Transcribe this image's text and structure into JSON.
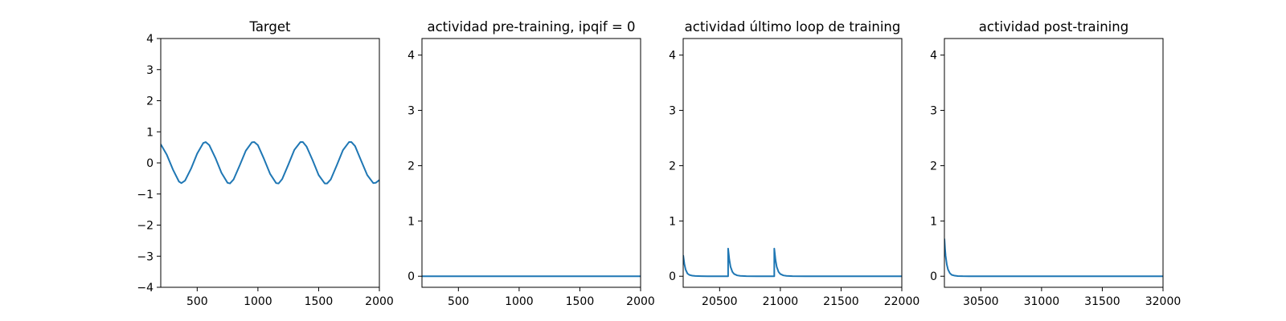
{
  "colors": {
    "series": "#1f77b4",
    "axes": "#000000",
    "background": "#ffffff"
  },
  "chart_data": [
    {
      "type": "line",
      "title": "Target",
      "xlim": [
        200,
        2000
      ],
      "ylim": [
        -4,
        4
      ],
      "xticks": [
        500,
        1000,
        1500,
        2000
      ],
      "yticks": [
        -4,
        -3,
        -2,
        -1,
        0,
        1,
        2,
        3,
        4
      ],
      "grid": false,
      "series": [
        {
          "x": [
            200,
            250,
            300,
            350,
            370,
            400,
            450,
            500,
            550,
            570,
            600,
            650,
            700,
            750,
            770,
            800,
            850,
            900,
            950,
            970,
            1000,
            1050,
            1100,
            1150,
            1170,
            1200,
            1250,
            1300,
            1350,
            1370,
            1400,
            1450,
            1500,
            1550,
            1570,
            1600,
            1650,
            1700,
            1750,
            1770,
            1800,
            1850,
            1900,
            1950,
            1970,
            2000
          ],
          "y": [
            0.6,
            0.26,
            -0.21,
            -0.6,
            -0.65,
            -0.57,
            -0.18,
            0.3,
            0.64,
            0.67,
            0.57,
            0.16,
            -0.32,
            -0.64,
            -0.66,
            -0.53,
            -0.08,
            0.39,
            0.66,
            0.67,
            0.57,
            0.13,
            -0.35,
            -0.65,
            -0.66,
            -0.52,
            -0.06,
            0.42,
            0.67,
            0.67,
            0.53,
            0.09,
            -0.39,
            -0.66,
            -0.66,
            -0.53,
            -0.07,
            0.41,
            0.67,
            0.67,
            0.54,
            0.07,
            -0.39,
            -0.65,
            -0.64,
            -0.55
          ]
        }
      ]
    },
    {
      "type": "line",
      "title": "actividad pre-training, ipqif = 0",
      "xlim": [
        200,
        2000
      ],
      "ylim": [
        -0.2,
        4.3
      ],
      "xticks": [
        500,
        1000,
        1500,
        2000
      ],
      "yticks": [
        0,
        1,
        2,
        3,
        4
      ],
      "grid": false,
      "series": [
        {
          "x": [
            200,
            2000
          ],
          "y": [
            0,
            0
          ]
        }
      ]
    },
    {
      "type": "line",
      "title": "actividad último loop de training",
      "xlim": [
        20200,
        22000
      ],
      "ylim": [
        -0.2,
        4.3
      ],
      "xticks": [
        20500,
        21000,
        21500,
        22000
      ],
      "yticks": [
        0,
        1,
        2,
        3,
        4
      ],
      "grid": false,
      "series": [
        {
          "x": [
            20200,
            20210,
            20220,
            20235,
            20250,
            20275,
            20300,
            20350,
            20400,
            20500,
            20570,
            20570,
            20580,
            20590,
            20605,
            20620,
            20645,
            20670,
            20720,
            20800,
            20950,
            20950,
            20960,
            20970,
            20985,
            21000,
            21025,
            21050,
            21100,
            21200,
            21500,
            22000
          ],
          "y": [
            0.38,
            0.22,
            0.12,
            0.05,
            0.025,
            0.01,
            0.005,
            0.002,
            0.0,
            0.0,
            0.0,
            0.5,
            0.3,
            0.17,
            0.08,
            0.04,
            0.015,
            0.007,
            0.002,
            0.0,
            0.0,
            0.5,
            0.3,
            0.17,
            0.08,
            0.04,
            0.015,
            0.007,
            0.002,
            0.0,
            0.0,
            0.0
          ]
        }
      ]
    },
    {
      "type": "line",
      "title": "actividad post-training",
      "xlim": [
        30200,
        32000
      ],
      "ylim": [
        -0.2,
        4.3
      ],
      "xticks": [
        30500,
        31000,
        31500,
        32000
      ],
      "yticks": [
        0,
        1,
        2,
        3,
        4
      ],
      "grid": false,
      "series": [
        {
          "x": [
            30200,
            30205,
            30210,
            30220,
            30230,
            30245,
            30260,
            30285,
            30310,
            30350,
            30400,
            30500,
            32000
          ],
          "y": [
            0.68,
            0.5,
            0.37,
            0.21,
            0.12,
            0.055,
            0.025,
            0.01,
            0.004,
            0.001,
            0.0,
            0.0,
            0.0
          ]
        }
      ]
    }
  ]
}
